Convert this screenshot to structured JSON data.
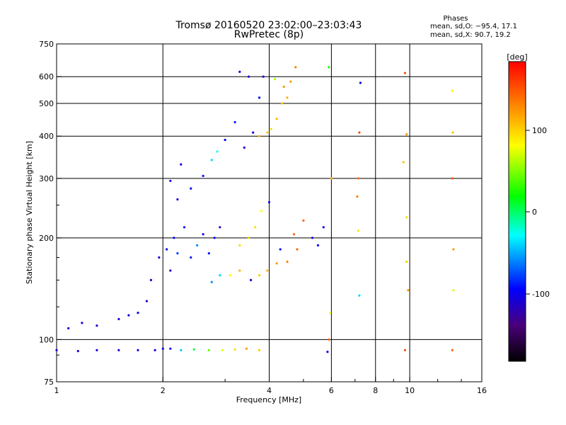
{
  "chart_data": {
    "type": "scatter",
    "title": "Tromsø 20160520 23:02:00–23:03:43",
    "subtitle": "RwPretec (8p)",
    "xlabel": "Frequency [MHz]",
    "ylabel": "Stationary phase Virtual Height [km]",
    "x_scale": "log",
    "y_scale": "log",
    "xlim": [
      1,
      16
    ],
    "ylim": [
      75,
      750
    ],
    "grid": true,
    "x_ticks": [
      "1",
      "2",
      "4",
      "6",
      "8",
      "10",
      "16"
    ],
    "y_ticks": [
      "75",
      "100",
      "200",
      "300",
      "400",
      "500",
      "600",
      "750"
    ],
    "phases": {
      "title": "Phases",
      "line1": "mean, sd,O: −95.4, 17.1",
      "line2": "mean, sd,X:  90.7, 19.2"
    },
    "colorbar": {
      "label": "[deg]",
      "ticks": [
        "100",
        "0",
        "-100"
      ],
      "range": [
        -180,
        180
      ]
    },
    "series": [
      {
        "values": [
          [
            1.0,
            93,
            -110
          ],
          [
            1.15,
            92.5,
            -110
          ],
          [
            1.3,
            93,
            -105
          ],
          [
            1.5,
            93,
            -110
          ],
          [
            1.7,
            93,
            -110
          ],
          [
            1.9,
            93,
            -105
          ],
          [
            2.0,
            94,
            -100
          ],
          [
            2.1,
            94,
            -90
          ],
          [
            2.25,
            93,
            -45
          ],
          [
            2.45,
            93.5,
            5
          ],
          [
            2.7,
            93,
            40
          ],
          [
            2.95,
            93,
            70
          ],
          [
            3.2,
            93.5,
            95
          ],
          [
            3.45,
            94,
            120
          ],
          [
            3.75,
            93,
            100
          ],
          [
            1.08,
            108,
            -110
          ],
          [
            1.18,
            112,
            -105
          ],
          [
            1.3,
            110,
            -110
          ],
          [
            1.5,
            115,
            -110
          ],
          [
            1.6,
            118,
            -105
          ],
          [
            1.7,
            120,
            -100
          ],
          [
            1.8,
            130,
            -110
          ],
          [
            1.85,
            150,
            -105
          ],
          [
            1.95,
            175,
            -110
          ],
          [
            2.05,
            185,
            -100
          ],
          [
            2.1,
            160,
            -110
          ],
          [
            2.15,
            200,
            -100
          ],
          [
            2.2,
            180,
            -80
          ],
          [
            2.3,
            215,
            -100
          ],
          [
            2.4,
            175,
            -90
          ],
          [
            2.5,
            190,
            -60
          ],
          [
            2.6,
            205,
            -100
          ],
          [
            2.7,
            180,
            -90
          ],
          [
            2.8,
            200,
            -100
          ],
          [
            2.9,
            215,
            -110
          ],
          [
            2.2,
            260,
            -110
          ],
          [
            2.1,
            295,
            -100
          ],
          [
            2.25,
            330,
            -105
          ],
          [
            2.4,
            280,
            -100
          ],
          [
            2.6,
            305,
            -90
          ],
          [
            2.75,
            340,
            -40
          ],
          [
            2.85,
            360,
            -30
          ],
          [
            3.0,
            390,
            -100
          ],
          [
            3.2,
            440,
            -90
          ],
          [
            3.3,
            620,
            -100
          ],
          [
            3.5,
            600,
            -110
          ],
          [
            3.75,
            520,
            -100
          ],
          [
            3.85,
            600,
            -110
          ],
          [
            3.4,
            370,
            -110
          ],
          [
            3.6,
            410,
            -105
          ],
          [
            3.75,
            400,
            110
          ],
          [
            3.95,
            410,
            100
          ],
          [
            4.05,
            420,
            95
          ],
          [
            4.2,
            450,
            110
          ],
          [
            4.35,
            500,
            105
          ],
          [
            4.5,
            520,
            110
          ],
          [
            4.6,
            580,
            120
          ],
          [
            4.75,
            640,
            130
          ],
          [
            4.15,
            590,
            60
          ],
          [
            4.4,
            560,
            120
          ],
          [
            2.75,
            148,
            -60
          ],
          [
            2.9,
            155,
            -40
          ],
          [
            3.1,
            155,
            80
          ],
          [
            3.3,
            160,
            110
          ],
          [
            3.55,
            150,
            -110
          ],
          [
            3.75,
            155,
            100
          ],
          [
            3.95,
            160,
            110
          ],
          [
            4.2,
            168,
            120
          ],
          [
            4.5,
            170,
            130
          ],
          [
            4.8,
            185,
            140
          ],
          [
            3.3,
            190,
            95
          ],
          [
            3.5,
            200,
            100
          ],
          [
            3.65,
            215,
            95
          ],
          [
            3.8,
            240,
            80
          ],
          [
            4.0,
            255,
            -100
          ],
          [
            4.3,
            185,
            -90
          ],
          [
            4.7,
            205,
            140
          ],
          [
            5.0,
            225,
            140
          ],
          [
            5.3,
            200,
            -110
          ],
          [
            5.5,
            190,
            -100
          ],
          [
            5.9,
            640,
            20
          ],
          [
            5.85,
            92,
            -100
          ],
          [
            5.9,
            100,
            140
          ],
          [
            5.95,
            120,
            80
          ],
          [
            6.0,
            300,
            110
          ],
          [
            7.1,
            265,
            130
          ],
          [
            7.15,
            300,
            140
          ],
          [
            7.2,
            410,
            150
          ],
          [
            7.25,
            575,
            -100
          ],
          [
            7.2,
            135,
            -40
          ],
          [
            9.7,
            615,
            150
          ],
          [
            9.8,
            405,
            120
          ],
          [
            9.6,
            335,
            105
          ],
          [
            9.8,
            170,
            100
          ],
          [
            9.9,
            140,
            120
          ],
          [
            9.7,
            93,
            150
          ],
          [
            13.2,
            300,
            150
          ],
          [
            13.25,
            410,
            105
          ],
          [
            13.2,
            545,
            80
          ],
          [
            13.3,
            140,
            70
          ],
          [
            13.2,
            93,
            140
          ],
          [
            13.3,
            185,
            120
          ],
          [
            9.8,
            230,
            95
          ],
          [
            7.15,
            210,
            90
          ],
          [
            5.7,
            215,
            -100
          ]
        ]
      }
    ]
  }
}
